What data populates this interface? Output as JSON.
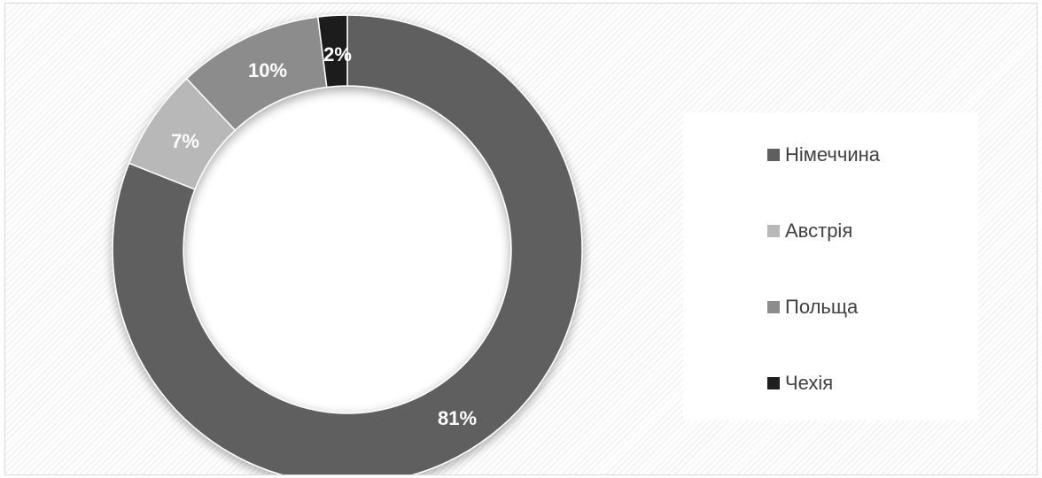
{
  "chart_data": {
    "type": "pie",
    "variant": "donut",
    "categories": [
      "Німеччина",
      "Австрія",
      "Польща",
      "Чехія"
    ],
    "values": [
      81,
      7,
      10,
      2
    ],
    "data_labels": [
      "81%",
      "7%",
      "10%",
      "2%"
    ],
    "colors": [
      "#5f5f5f",
      "#b8b8b8",
      "#8c8c8c",
      "#1f1f1f"
    ],
    "title": "",
    "legend_position": "right",
    "grid": false
  }
}
